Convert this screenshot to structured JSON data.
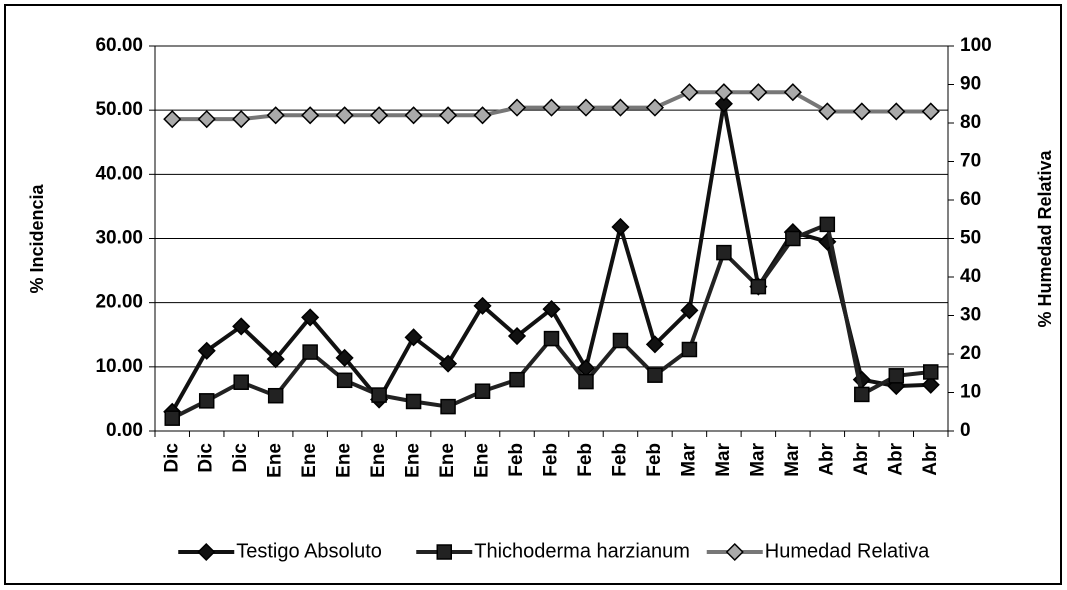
{
  "chart_data": {
    "type": "line",
    "categories": [
      "Dic",
      "Dic",
      "Dic",
      "Ene",
      "Ene",
      "Ene",
      "Ene",
      "Ene",
      "Ene",
      "Ene",
      "Feb",
      "Feb",
      "Feb",
      "Feb",
      "Feb",
      "Mar",
      "Mar",
      "Mar",
      "Mar",
      "Abr",
      "Abr",
      "Abr",
      "Abr"
    ],
    "y_label": "% Incidencia",
    "y2_label": "% Humedad Relativa",
    "ylim": [
      0,
      60
    ],
    "yticks": [
      {
        "value": 0,
        "label": "0.00"
      },
      {
        "value": 10,
        "label": "10.00"
      },
      {
        "value": 20,
        "label": "20.00"
      },
      {
        "value": 30,
        "label": "30.00"
      },
      {
        "value": 40,
        "label": "40.00"
      },
      {
        "value": 50,
        "label": "50.00"
      },
      {
        "value": 60,
        "label": "60.00"
      }
    ],
    "y2lim": [
      0,
      100
    ],
    "y2ticks": [
      0,
      10,
      20,
      30,
      40,
      50,
      60,
      70,
      80,
      90,
      100
    ],
    "grid": true,
    "legend": "bottom",
    "series": [
      {
        "name": "Testigo Absoluto",
        "color": "#111111",
        "marker": "diamond",
        "values": [
          3.0,
          12.5,
          16.3,
          11.2,
          17.7,
          11.4,
          4.9,
          14.6,
          10.5,
          19.5,
          14.8,
          19.0,
          9.8,
          31.8,
          13.5,
          18.8,
          51.0,
          22.5,
          31.0,
          29.5,
          8.0,
          7.0,
          7.2
        ]
      },
      {
        "name": "Thichoderma harzianum",
        "color": "#222222",
        "marker": "square",
        "values": [
          2.0,
          4.7,
          7.6,
          5.5,
          12.3,
          7.9,
          5.6,
          4.6,
          3.8,
          6.2,
          8.0,
          14.4,
          7.7,
          14.1,
          8.7,
          12.7,
          27.8,
          22.5,
          30.0,
          32.2,
          5.7,
          8.6,
          9.2
        ]
      },
      {
        "name": "Humedad Relativa",
        "color": "#777777",
        "marker": "diamond",
        "axis": "y2",
        "values": [
          81,
          81,
          81,
          82,
          82,
          82,
          82,
          82,
          82,
          82,
          84,
          84,
          84,
          84,
          84,
          88,
          88,
          88,
          88,
          83,
          83,
          83,
          83
        ]
      }
    ]
  }
}
